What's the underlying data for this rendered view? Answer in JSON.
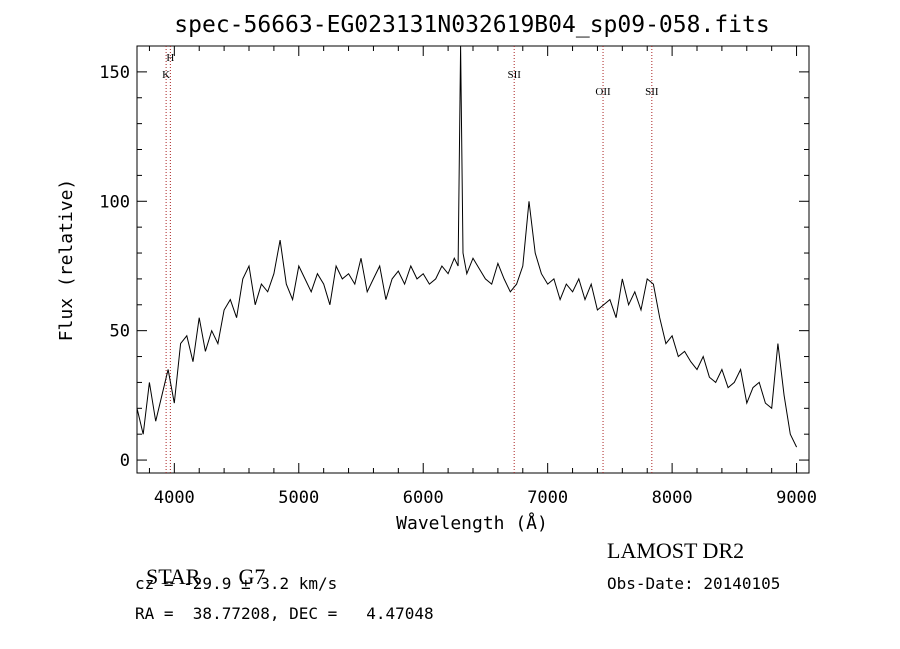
{
  "chart_data": {
    "type": "line",
    "title": "spec-56663-EG023131N032619B04_sp09-058.fits",
    "xlabel": "Wavelength (Å)",
    "ylabel": "Flux (relative)",
    "xlim": [
      3700,
      9100
    ],
    "ylim": [
      -5,
      160
    ],
    "xticks": [
      4000,
      5000,
      6000,
      7000,
      8000,
      9000
    ],
    "yticks": [
      0,
      50,
      100,
      150
    ],
    "grid": false,
    "line_color": "#000000",
    "marker_color": "#aa2222",
    "series": [
      {
        "values_note": "",
        "x": [
          3700,
          3750,
          3800,
          3850,
          3900,
          3950,
          4000,
          4050,
          4100,
          4150,
          4200,
          4250,
          4300,
          4350,
          4400,
          4450,
          4500,
          4550,
          4600,
          4650,
          4700,
          4750,
          4800,
          4850,
          4900,
          4950,
          5000,
          5050,
          5100,
          5150,
          5200,
          5250,
          5300,
          5350,
          5400,
          5450,
          5500,
          5550,
          5600,
          5650,
          5700,
          5750,
          5800,
          5850,
          5900,
          5950,
          6000,
          6050,
          6100,
          6150,
          6200,
          6250,
          6280,
          6300,
          6320,
          6350,
          6400,
          6450,
          6500,
          6550,
          6600,
          6650,
          6700,
          6750,
          6800,
          6850,
          6900,
          6950,
          7000,
          7050,
          7100,
          7150,
          7200,
          7250,
          7300,
          7350,
          7400,
          7450,
          7500,
          7550,
          7600,
          7650,
          7700,
          7750,
          7800,
          7850,
          7900,
          7950,
          8000,
          8050,
          8100,
          8150,
          8200,
          8250,
          8300,
          8350,
          8400,
          8450,
          8500,
          8550,
          8600,
          8650,
          8700,
          8750,
          8800,
          8850,
          8900,
          8950,
          9000
        ],
        "y": [
          20,
          10,
          30,
          15,
          25,
          35,
          22,
          45,
          48,
          38,
          55,
          42,
          50,
          45,
          58,
          62,
          55,
          70,
          75,
          60,
          68,
          65,
          72,
          85,
          68,
          62,
          75,
          70,
          65,
          72,
          68,
          60,
          75,
          70,
          72,
          68,
          78,
          65,
          70,
          75,
          62,
          70,
          73,
          68,
          75,
          70,
          72,
          68,
          70,
          75,
          72,
          78,
          75,
          160,
          80,
          72,
          78,
          74,
          70,
          68,
          76,
          70,
          65,
          68,
          75,
          100,
          80,
          72,
          68,
          70,
          62,
          68,
          65,
          70,
          62,
          68,
          58,
          60,
          62,
          55,
          70,
          60,
          65,
          58,
          70,
          68,
          55,
          45,
          48,
          40,
          42,
          38,
          35,
          40,
          32,
          30,
          35,
          28,
          30,
          35,
          22,
          28,
          30,
          22,
          20,
          45,
          25,
          10,
          5
        ]
      }
    ],
    "line_markers": [
      {
        "label": "H",
        "x": 3968
      },
      {
        "label": "K",
        "x": 3934
      },
      {
        "label": "SII",
        "x": 6731
      },
      {
        "label": "OII",
        "x": 7445
      },
      {
        "label": "SII",
        "x": 7837
      }
    ]
  },
  "info": {
    "class_label": "STAR",
    "subclass_label": "G7",
    "cz_text": "cz = -29.9 ± 3.2 km/s",
    "radec_text": "RA =  38.77208, DEC =   4.47048",
    "survey_label": "LAMOST DR2",
    "obs_date_text": "Obs-Date: 20140105"
  }
}
